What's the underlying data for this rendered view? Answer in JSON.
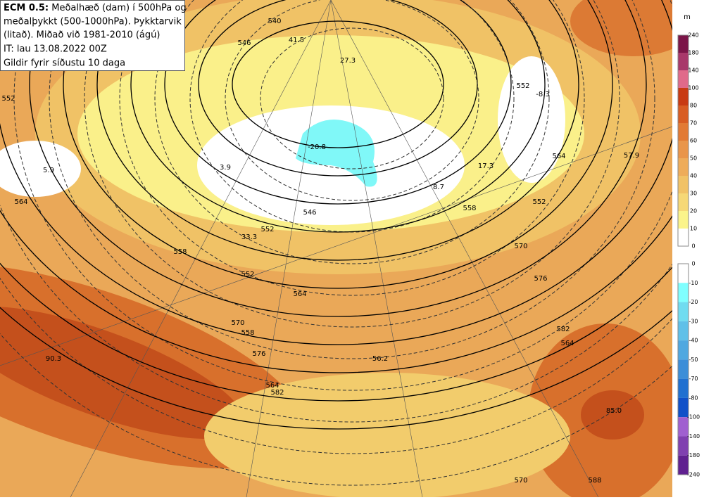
{
  "header": {
    "model": "ECM 0.5:",
    "title": "Meðalhæð (dam) í 500hPa og",
    "title_2": "meðalþykkt (500-1000hPa). Þykktarvik",
    "title_3": "(litað). Miðað við 1981-2010 (ágú)",
    "init": "IT: lau 13.08.2022 00Z",
    "valid": "Gildir fyrir síðustu 10 daga"
  },
  "map": {
    "contour_labels": [
      "540",
      "546",
      "41.5",
      "27.3",
      "-8.3",
      "552",
      "552",
      "-20.8",
      "3.9",
      "5.9",
      "17.3",
      "564",
      "57.9",
      "8.7",
      "558",
      "552",
      "546",
      "552",
      "564",
      "33.3",
      "558",
      "570",
      "552",
      "576",
      "564",
      "570",
      "558",
      "582",
      "564",
      "576",
      "90.3",
      "56.2",
      "564",
      "582",
      "85.0",
      "570",
      "588"
    ]
  },
  "legend": {
    "unit": "m",
    "positive": {
      "ticks": [
        240,
        180,
        140,
        100,
        80,
        70,
        60,
        50,
        40,
        30,
        20,
        10,
        0
      ],
      "colors": [
        "#7b1548",
        "#a8386a",
        "#e06a8a",
        "#c83a12",
        "#d85c22",
        "#e27a34",
        "#e9954a",
        "#eeac5a",
        "#f1c266",
        "#f6d876",
        "#fbf48a",
        "#ffffff"
      ]
    },
    "negative": {
      "ticks": [
        0,
        -10,
        -20,
        -30,
        -40,
        -50,
        -70,
        -80,
        -100,
        -140,
        -180,
        -240
      ],
      "colors": [
        "#ffffff",
        "#80ffff",
        "#70dcf0",
        "#60c0e8",
        "#50a8e0",
        "#3c8ed8",
        "#2070d0",
        "#1050c8",
        "#a060d0",
        "#8040b0",
        "#602090"
      ]
    }
  }
}
